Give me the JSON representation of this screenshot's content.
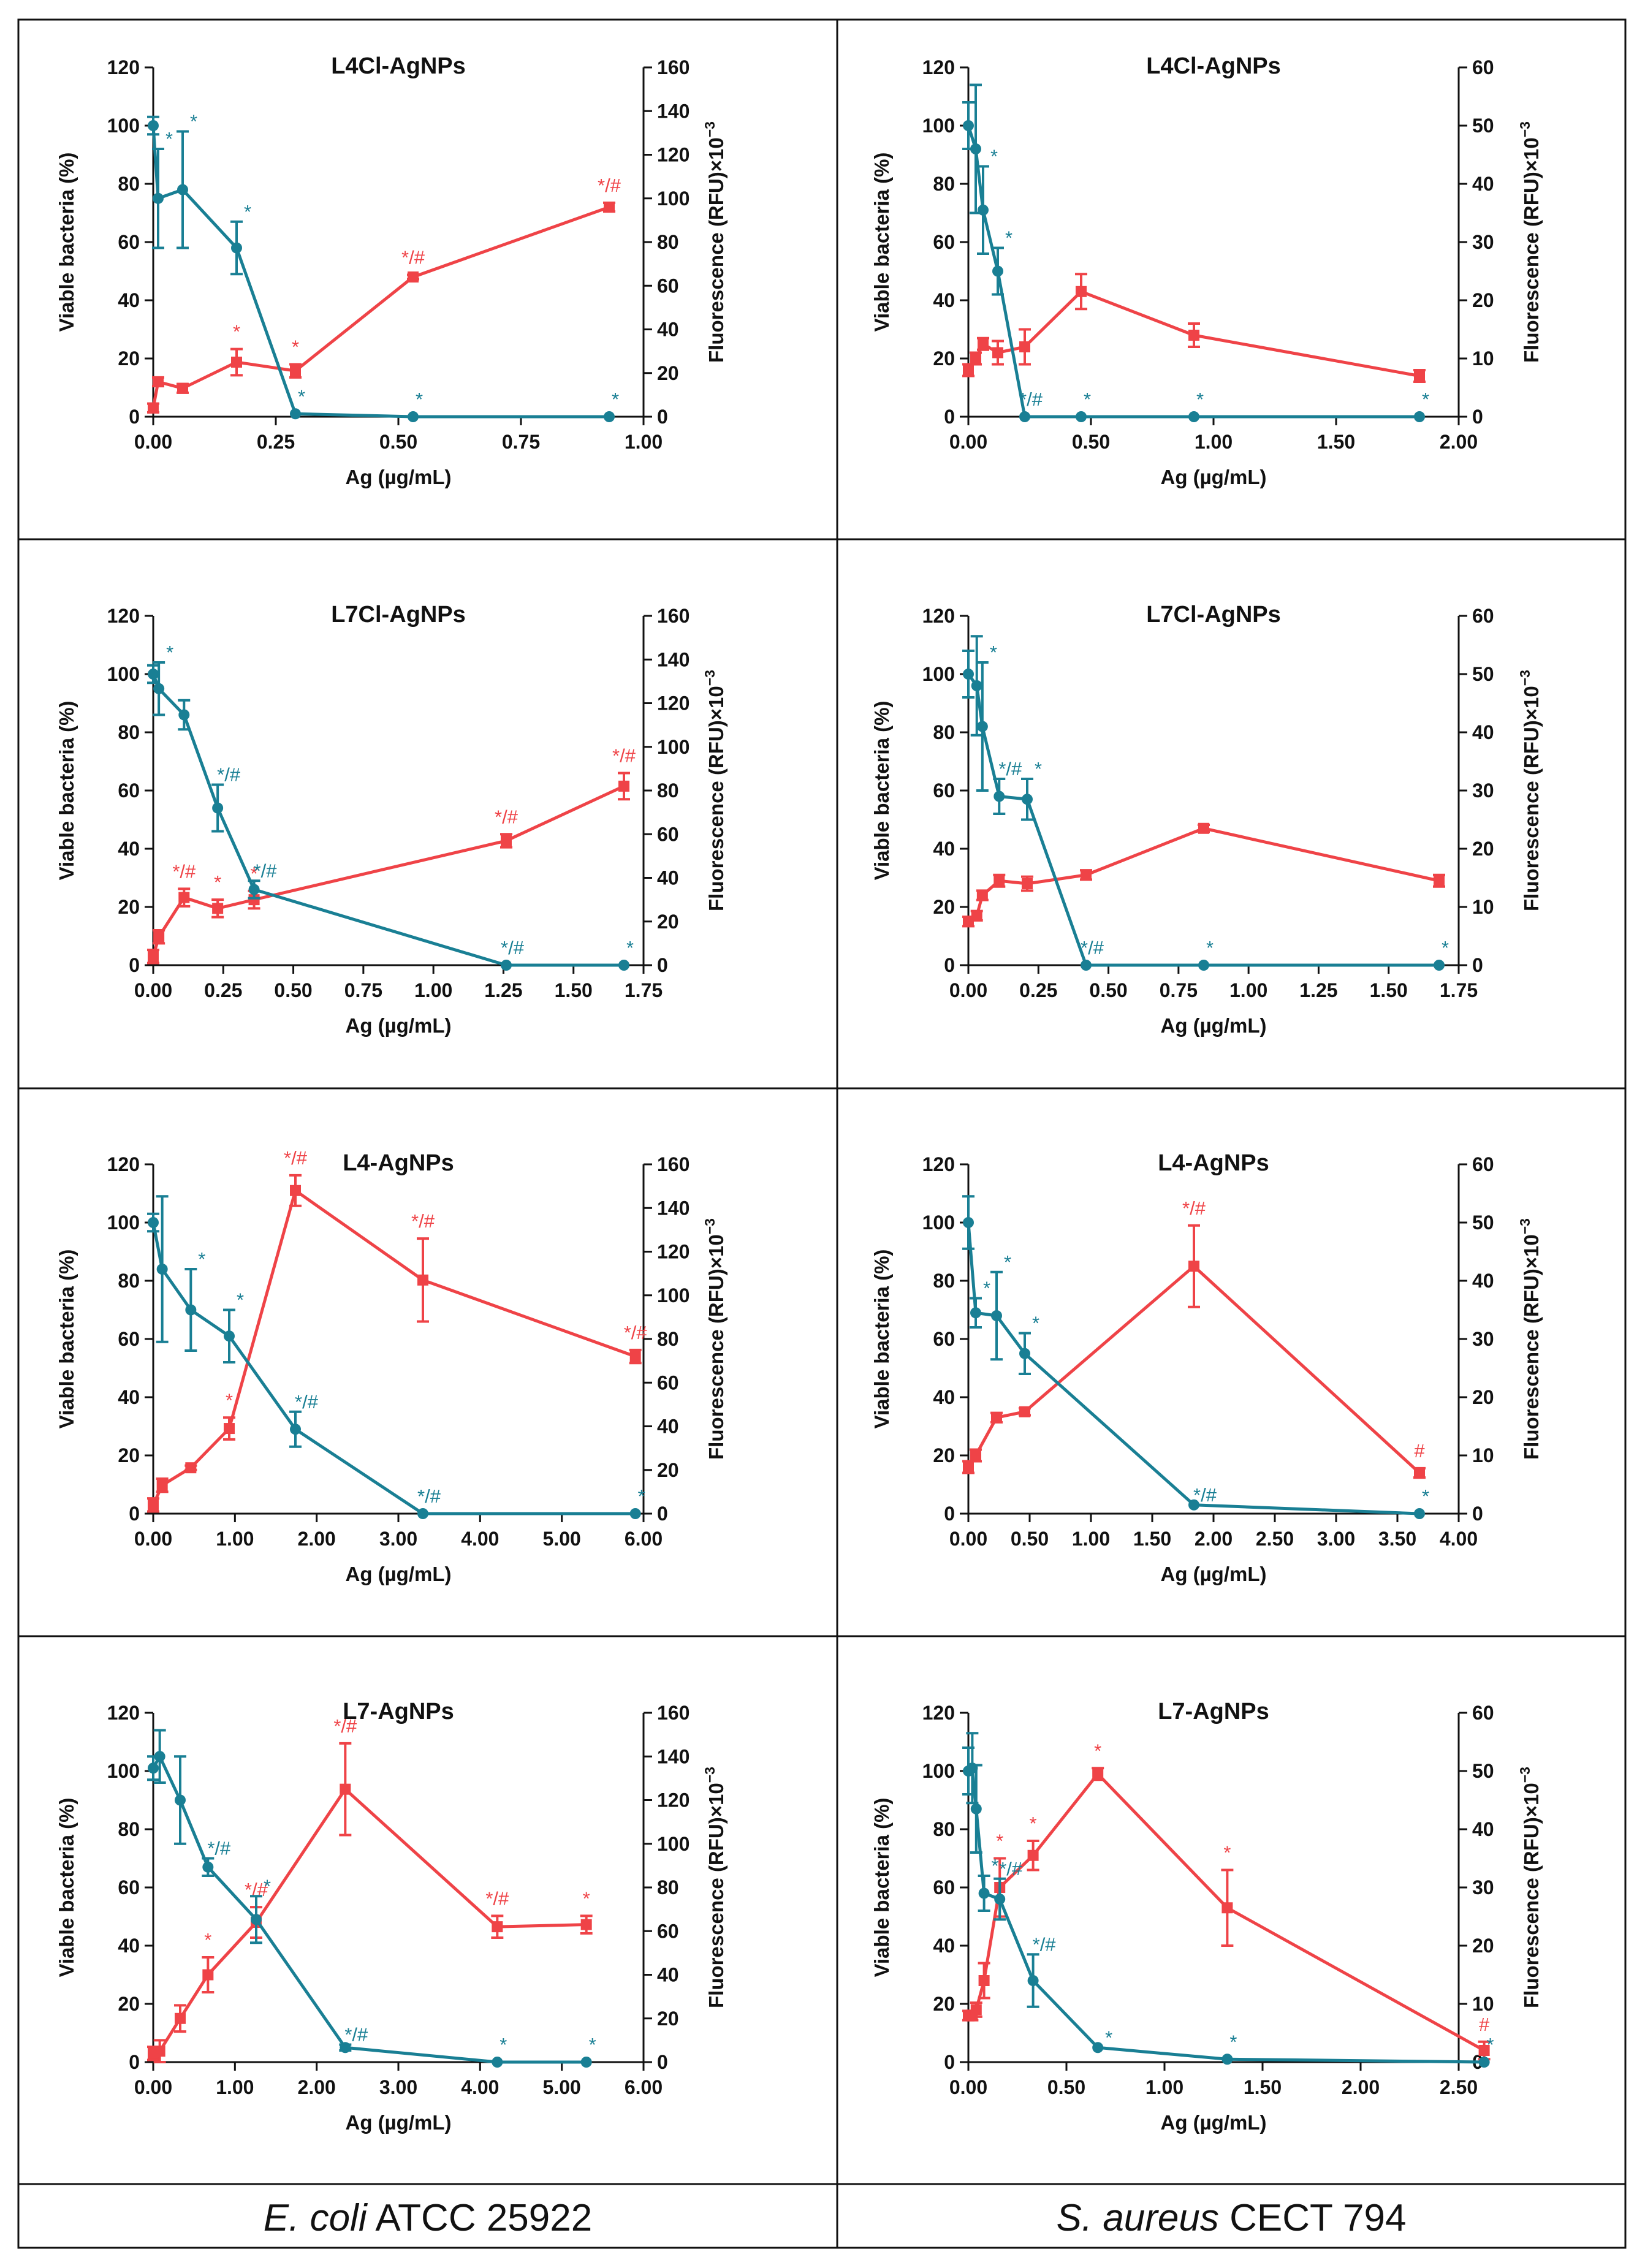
{
  "colors": {
    "viable": "#197f94",
    "fluor": "#ef4347"
  },
  "footer": {
    "left_italic": "E. coli",
    "left_rest": " ATCC 25922",
    "right_italic": "S. aureus",
    "right_rest": " CECT 794"
  },
  "chart_data": [
    {
      "id": "p1",
      "type": "line",
      "title": "L4Cl-AgNPs",
      "xlabel": "Ag (µg/mL)",
      "ylabel": "Viable bacteria (%)",
      "y2label_main": "Fluorescence (RFU)×10",
      "y2label_exp": "−3",
      "xlim": [
        0,
        1
      ],
      "xticks": [
        0,
        0.25,
        0.5,
        0.75,
        1.0
      ],
      "xtick_labels": [
        "0.00",
        "0.25",
        "0.50",
        "0.75",
        "1.00"
      ],
      "ylim": [
        0,
        120
      ],
      "yticks": [
        0,
        20,
        40,
        60,
        80,
        100,
        120
      ],
      "y2lim": [
        0,
        160
      ],
      "y2ticks": [
        0,
        20,
        40,
        60,
        80,
        100,
        120,
        140,
        160
      ],
      "series": [
        {
          "name": "Viable bacteria",
          "axis": "left",
          "color": "viable",
          "x": [
            0,
            0.01,
            0.06,
            0.17,
            0.29,
            0.53,
            0.93
          ],
          "y": [
            100,
            75,
            78,
            58,
            1,
            0,
            0
          ],
          "err": [
            3,
            17,
            20,
            9,
            0,
            0,
            0
          ],
          "labels": [
            "",
            "*",
            "*",
            "*",
            "*",
            "*",
            "*"
          ]
        },
        {
          "name": "Fluorescence",
          "axis": "right",
          "color": "fluor",
          "x": [
            0,
            0.01,
            0.06,
            0.17,
            0.29,
            0.53,
            0.93
          ],
          "y": [
            4,
            16,
            13,
            25,
            21,
            64,
            96
          ],
          "err": [
            2,
            2,
            2,
            6,
            3,
            1,
            2
          ],
          "labels": [
            "",
            "",
            "",
            "*",
            "*",
            "*/#",
            "*/#"
          ]
        }
      ]
    },
    {
      "id": "p2",
      "type": "line",
      "title": "L4Cl-AgNPs",
      "xlabel": "Ag (µg/mL)",
      "ylabel": "Viable bacteria (%)",
      "y2label_main": "Fluorescence (RFU)×10",
      "y2label_exp": "−3",
      "xlim": [
        0,
        2
      ],
      "xticks": [
        0,
        0.5,
        1.0,
        1.5,
        2.0
      ],
      "xtick_labels": [
        "0.00",
        "0.50",
        "1.00",
        "1.50",
        "2.00"
      ],
      "ylim": [
        0,
        120
      ],
      "yticks": [
        0,
        20,
        40,
        60,
        80,
        100,
        120
      ],
      "y2lim": [
        0,
        60
      ],
      "y2ticks": [
        0,
        10,
        20,
        30,
        40,
        50,
        60
      ],
      "series": [
        {
          "name": "Viable bacteria",
          "axis": "left",
          "color": "viable",
          "x": [
            0,
            0.03,
            0.06,
            0.12,
            0.23,
            0.46,
            0.92,
            1.84
          ],
          "y": [
            100,
            92,
            71,
            50,
            0,
            0,
            0,
            0
          ],
          "err": [
            8,
            22,
            15,
            8,
            0,
            0,
            0,
            0
          ],
          "labels": [
            "",
            "",
            "*",
            "*",
            "*/#",
            "*",
            "*",
            "*"
          ]
        },
        {
          "name": "Fluorescence",
          "axis": "right",
          "color": "fluor",
          "x": [
            0,
            0.03,
            0.06,
            0.12,
            0.23,
            0.46,
            0.92,
            1.84
          ],
          "y": [
            8,
            10,
            12.5,
            11,
            12,
            21.5,
            14,
            7
          ],
          "err": [
            1,
            1,
            1,
            2,
            3,
            3,
            2,
            1
          ],
          "labels": [
            "",
            "",
            "",
            "",
            "",
            "",
            "",
            ""
          ]
        }
      ]
    },
    {
      "id": "p3",
      "type": "line",
      "title": "L7Cl-AgNPs",
      "xlabel": "Ag (µg/mL)",
      "ylabel": "Viable bacteria (%)",
      "y2label_main": "Fluorescence (RFU)×10",
      "y2label_exp": "−3",
      "xlim": [
        0,
        1.75
      ],
      "xticks": [
        0,
        0.25,
        0.5,
        0.75,
        1.0,
        1.25,
        1.5,
        1.75
      ],
      "xtick_labels": [
        "0.00",
        "0.25",
        "0.50",
        "0.75",
        "1.00",
        "1.25",
        "1.50",
        "1.75"
      ],
      "ylim": [
        0,
        120
      ],
      "yticks": [
        0,
        20,
        40,
        60,
        80,
        100,
        120
      ],
      "y2lim": [
        0,
        160
      ],
      "y2ticks": [
        0,
        20,
        40,
        60,
        80,
        100,
        120,
        140,
        160
      ],
      "series": [
        {
          "name": "Viable bacteria",
          "axis": "left",
          "color": "viable",
          "x": [
            0,
            0.02,
            0.11,
            0.23,
            0.36,
            1.26,
            1.68
          ],
          "y": [
            100,
            95,
            86,
            54,
            26,
            0,
            0
          ],
          "err": [
            3,
            9,
            5,
            8,
            3,
            0,
            0
          ],
          "labels": [
            "",
            "*",
            "",
            "*/#",
            "*/#",
            "*/#",
            "*"
          ]
        },
        {
          "name": "Fluorescence",
          "axis": "right",
          "color": "fluor",
          "x": [
            0,
            0.02,
            0.11,
            0.23,
            0.36,
            1.26,
            1.68
          ],
          "y": [
            4,
            13,
            31,
            26,
            30,
            57,
            82
          ],
          "err": [
            3,
            3,
            4,
            4,
            4,
            3,
            6
          ],
          "labels": [
            "",
            "",
            "*/#",
            "*",
            "*",
            "*/#",
            "*/#"
          ]
        }
      ]
    },
    {
      "id": "p4",
      "type": "line",
      "title": "L7Cl-AgNPs",
      "xlabel": "Ag (µg/mL)",
      "ylabel": "Viable bacteria (%)",
      "y2label_main": "Fluorescence (RFU)×10",
      "y2label_exp": "−3",
      "xlim": [
        0,
        1.75
      ],
      "xticks": [
        0,
        0.25,
        0.5,
        0.75,
        1.0,
        1.25,
        1.5,
        1.75
      ],
      "xtick_labels": [
        "0.00",
        "0.25",
        "0.50",
        "0.75",
        "1.00",
        "1.25",
        "1.50",
        "1.75"
      ],
      "ylim": [
        0,
        120
      ],
      "yticks": [
        0,
        20,
        40,
        60,
        80,
        100,
        120
      ],
      "y2lim": [
        0,
        60
      ],
      "y2ticks": [
        0,
        10,
        20,
        30,
        40,
        50,
        60
      ],
      "series": [
        {
          "name": "Viable bacteria",
          "axis": "left",
          "color": "viable",
          "x": [
            0,
            0.03,
            0.05,
            0.11,
            0.21,
            0.42,
            0.84,
            1.68
          ],
          "y": [
            100,
            96,
            82,
            58,
            57,
            0,
            0,
            0
          ],
          "err": [
            8,
            17,
            22,
            6,
            7,
            0,
            0,
            0
          ],
          "labels": [
            "",
            "",
            "*",
            "*/#",
            "*",
            "*/#",
            "*",
            "*"
          ]
        },
        {
          "name": "Fluorescence",
          "axis": "right",
          "color": "fluor",
          "x": [
            0,
            0.03,
            0.05,
            0.11,
            0.21,
            0.42,
            0.84,
            1.68
          ],
          "y": [
            7.5,
            8.5,
            12,
            14.5,
            14,
            15.5,
            23.5,
            14.5
          ],
          "err": [
            0.8,
            0.8,
            0.8,
            1,
            1.2,
            0.8,
            0.6,
            1
          ],
          "labels": [
            "",
            "",
            "",
            "",
            "",
            "",
            "",
            ""
          ]
        }
      ]
    },
    {
      "id": "p5",
      "type": "line",
      "title": "L4-AgNPs",
      "xlabel": "Ag (µg/mL)",
      "ylabel": "Viable bacteria (%)",
      "y2label_main": "Fluorescence (RFU)×10",
      "y2label_exp": "−3",
      "xlim": [
        0,
        6
      ],
      "xticks": [
        0,
        1,
        2,
        3,
        4,
        5,
        6
      ],
      "xtick_labels": [
        "0.00",
        "1.00",
        "2.00",
        "3.00",
        "4.00",
        "5.00",
        "6.00"
      ],
      "ylim": [
        0,
        120
      ],
      "yticks": [
        0,
        20,
        40,
        60,
        80,
        100,
        120
      ],
      "y2lim": [
        0,
        160
      ],
      "y2ticks": [
        0,
        20,
        40,
        60,
        80,
        100,
        120,
        140,
        160
      ],
      "series": [
        {
          "name": "Viable bacteria",
          "axis": "left",
          "color": "viable",
          "x": [
            0,
            0.11,
            0.46,
            0.93,
            1.74,
            3.3,
            5.9
          ],
          "y": [
            100,
            84,
            70,
            61,
            29,
            0,
            0
          ],
          "err": [
            3,
            25,
            14,
            9,
            6,
            0,
            0
          ],
          "labels": [
            "",
            "",
            "*",
            "*",
            "*/#",
            "*/#",
            "*"
          ]
        },
        {
          "name": "Fluorescence",
          "axis": "right",
          "color": "fluor",
          "x": [
            0,
            0.11,
            0.46,
            0.93,
            1.74,
            3.3,
            5.9
          ],
          "y": [
            4,
            13,
            21,
            39,
            148,
            107,
            72
          ],
          "err": [
            3,
            3,
            1,
            5,
            7,
            19,
            3
          ],
          "labels": [
            "",
            "",
            "",
            "*",
            "*/#",
            "*/#",
            "*/#"
          ]
        }
      ]
    },
    {
      "id": "p6",
      "type": "line",
      "title": "L4-AgNPs",
      "xlabel": "Ag (µg/mL)",
      "ylabel": "Viable bacteria (%)",
      "y2label_main": "Fluorescence (RFU)×10",
      "y2label_exp": "−3",
      "xlim": [
        0,
        4
      ],
      "xticks": [
        0,
        0.5,
        1.0,
        1.5,
        2.0,
        2.5,
        3.0,
        3.5,
        4.0
      ],
      "xtick_labels": [
        "0.00",
        "0.50",
        "1.00",
        "1.50",
        "2.00",
        "2.50",
        "3.00",
        "3.50",
        "4.00"
      ],
      "ylim": [
        0,
        120
      ],
      "yticks": [
        0,
        20,
        40,
        60,
        80,
        100,
        120
      ],
      "y2lim": [
        0,
        60
      ],
      "y2ticks": [
        0,
        10,
        20,
        30,
        40,
        50,
        60
      ],
      "series": [
        {
          "name": "Viable bacteria",
          "axis": "left",
          "color": "viable",
          "x": [
            0,
            0.06,
            0.23,
            0.46,
            1.84,
            3.68
          ],
          "y": [
            100,
            69,
            68,
            55,
            3,
            0
          ],
          "err": [
            9,
            5,
            15,
            7,
            0,
            0
          ],
          "labels": [
            "",
            "*",
            "*",
            "*",
            "*/#",
            "*"
          ]
        },
        {
          "name": "Fluorescence",
          "axis": "right",
          "color": "fluor",
          "x": [
            0,
            0.06,
            0.23,
            0.46,
            1.84,
            3.68
          ],
          "y": [
            8,
            10,
            16.5,
            17.5,
            42.5,
            7
          ],
          "err": [
            1,
            1,
            0.8,
            0.6,
            7,
            0.8
          ],
          "labels": [
            "",
            "",
            "",
            "",
            "*/#",
            "#"
          ]
        }
      ]
    },
    {
      "id": "p7",
      "type": "line",
      "title": "L7-AgNPs",
      "xlabel": "Ag (µg/mL)",
      "ylabel": "Viable bacteria (%)",
      "y2label_main": "Fluorescence (RFU)×10",
      "y2label_exp": "−3",
      "xlim": [
        0,
        6
      ],
      "xticks": [
        0,
        1,
        2,
        3,
        4,
        5,
        6
      ],
      "xtick_labels": [
        "0.00",
        "1.00",
        "2.00",
        "3.00",
        "4.00",
        "5.00",
        "6.00"
      ],
      "ylim": [
        0,
        120
      ],
      "yticks": [
        0,
        20,
        40,
        60,
        80,
        100,
        120
      ],
      "y2lim": [
        0,
        160
      ],
      "y2ticks": [
        0,
        20,
        40,
        60,
        80,
        100,
        120,
        140,
        160
      ],
      "series": [
        {
          "name": "Viable bacteria",
          "axis": "left",
          "color": "viable",
          "x": [
            0,
            0.08,
            0.33,
            0.67,
            1.26,
            2.35,
            4.21,
            5.3
          ],
          "y": [
            101,
            105,
            90,
            67,
            49,
            5,
            0,
            0
          ],
          "err": [
            4,
            9,
            15,
            3,
            8,
            1,
            0,
            0
          ],
          "labels": [
            "",
            "",
            "",
            "*/#",
            "*",
            "*/#",
            "*",
            "*"
          ]
        },
        {
          "name": "Fluorescence",
          "axis": "right",
          "color": "fluor",
          "x": [
            0,
            0.08,
            0.33,
            0.67,
            1.26,
            2.35,
            4.21,
            5.3
          ],
          "y": [
            4,
            5,
            20,
            40,
            64,
            125,
            62,
            63
          ],
          "err": [
            3,
            5,
            6,
            8,
            7,
            21,
            5,
            4
          ],
          "labels": [
            "",
            "",
            "",
            "*",
            "*/#",
            "*/#",
            "*/#",
            "*"
          ]
        }
      ]
    },
    {
      "id": "p8",
      "type": "line",
      "title": "L7-AgNPs",
      "xlabel": "Ag (µg/mL)",
      "ylabel": "Viable bacteria (%)",
      "y2label_main": "Fluorescence (RFU)×10",
      "y2label_exp": "−3",
      "xlim": [
        0,
        2.5
      ],
      "xticks": [
        0,
        0.5,
        1.0,
        1.5,
        2.0,
        2.5
      ],
      "xtick_labels": [
        "0.00",
        "0.50",
        "1.00",
        "1.50",
        "2.00",
        "2.50"
      ],
      "ylim": [
        0,
        120
      ],
      "yticks": [
        0,
        20,
        40,
        60,
        80,
        100,
        120
      ],
      "y2lim": [
        0,
        60
      ],
      "y2ticks": [
        0,
        10,
        20,
        30,
        40,
        50,
        60
      ],
      "series": [
        {
          "name": "Viable bacteria",
          "axis": "left",
          "color": "viable",
          "x": [
            0,
            0.02,
            0.04,
            0.08,
            0.16,
            0.33,
            0.66,
            1.32,
            2.63
          ],
          "y": [
            100,
            101,
            87,
            58,
            56,
            28,
            5,
            1,
            0
          ],
          "err": [
            8,
            12,
            15,
            6,
            7,
            9,
            0,
            0,
            0
          ],
          "labels": [
            "",
            "",
            "",
            "*",
            "*/#",
            "*/#",
            "*",
            "*",
            "*"
          ]
        },
        {
          "name": "Fluorescence",
          "axis": "right",
          "color": "fluor",
          "x": [
            0,
            0.02,
            0.04,
            0.08,
            0.16,
            0.33,
            0.66,
            1.32,
            2.63
          ],
          "y": [
            8,
            8,
            9,
            14,
            30,
            35.5,
            49.5,
            26.5,
            2
          ],
          "err": [
            0.8,
            0.8,
            1.2,
            3,
            5,
            2.5,
            1,
            6.5,
            1.5
          ],
          "labels": [
            "",
            "",
            "",
            "",
            "*",
            "*",
            "*",
            "*",
            "#"
          ]
        }
      ]
    }
  ]
}
